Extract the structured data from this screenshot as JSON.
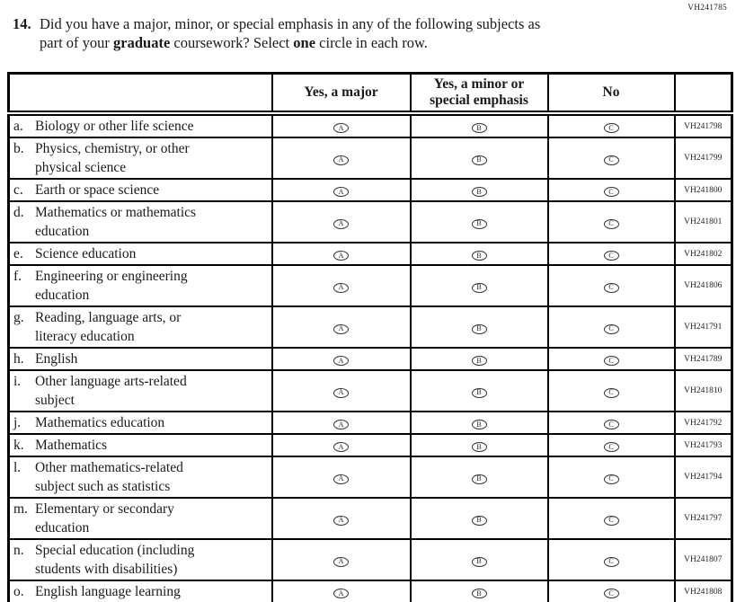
{
  "page": {
    "form_code": "VH241785"
  },
  "question": {
    "number": "14.",
    "segments": [
      {
        "text": "Did you have a major, minor, or special emphasis in any of the following subjects as",
        "bold": false
      },
      {
        "br": true
      },
      {
        "text": "part of your ",
        "bold": false
      },
      {
        "text": "graduate",
        "bold": true
      },
      {
        "text": " coursework? Select ",
        "bold": false
      },
      {
        "text": "one",
        "bold": true
      },
      {
        "text": " circle in each row.",
        "bold": false
      }
    ]
  },
  "table": {
    "headers": [
      "",
      "Yes, a major",
      "Yes, a minor or\nspecial emphasis",
      "No",
      ""
    ],
    "options": [
      "A",
      "B",
      "C"
    ],
    "rows": [
      {
        "letter": "a.",
        "label": "Biology or other life science",
        "code": "VH241798"
      },
      {
        "letter": "b.",
        "label": "Physics, chemistry, or other\nphysical science",
        "code": "VH241799"
      },
      {
        "letter": "c.",
        "label": "Earth or space science",
        "code": "VH241800"
      },
      {
        "letter": "d.",
        "label": "Mathematics or mathematics\neducation",
        "code": "VH241801"
      },
      {
        "letter": "e.",
        "label": "Science education",
        "code": "VH241802"
      },
      {
        "letter": "f.",
        "label": "Engineering or engineering\neducation",
        "code": "VH241806"
      },
      {
        "letter": "g.",
        "label": "Reading, language arts, or\nliteracy education",
        "code": "VH241791"
      },
      {
        "letter": "h.",
        "label": "English",
        "code": "VH241789"
      },
      {
        "letter": "i.",
        "label": "Other language arts-related\nsubject",
        "code": "VH241810"
      },
      {
        "letter": "j.",
        "label": "Mathematics education",
        "code": "VH241792"
      },
      {
        "letter": "k.",
        "label": "Mathematics",
        "code": "VH241793"
      },
      {
        "letter": "l.",
        "label": "Other mathematics-related\nsubject such as statistics",
        "code": "VH241794"
      },
      {
        "letter": "m.",
        "label": "Elementary or secondary\neducation",
        "code": "VH241797"
      },
      {
        "letter": "n.",
        "label": "Special education (including\nstudents with disabilities)",
        "code": "VH241807"
      },
      {
        "letter": "o.",
        "label": "English language learning",
        "code": "VH241808"
      }
    ]
  }
}
